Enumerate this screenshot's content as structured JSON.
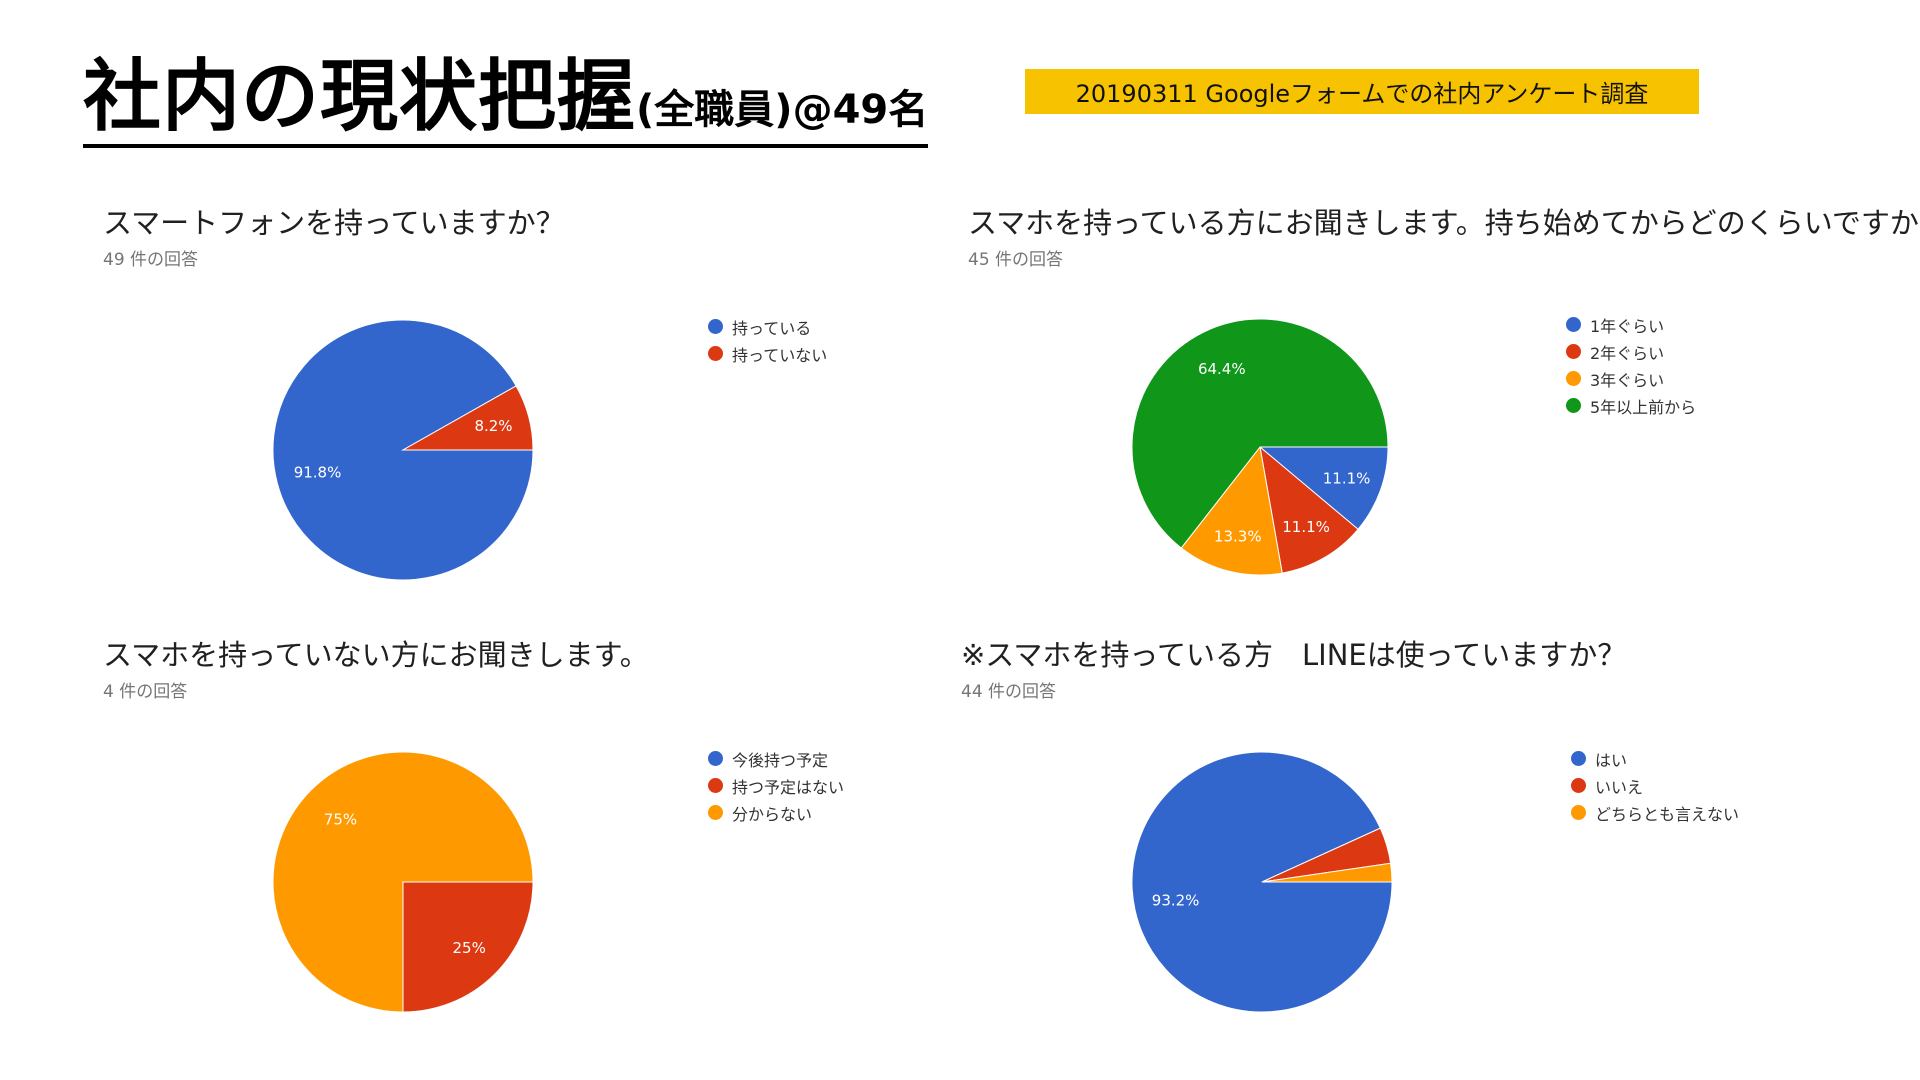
{
  "header": {
    "title_main": "社内の現状把握",
    "title_sub": "(全職員)@49名",
    "banner": "20190311  Googleフォームでの社内アンケート調査"
  },
  "colors": {
    "blue": "#3366cc",
    "red": "#dc3912",
    "orange": "#ff9900",
    "green": "#109618"
  },
  "chart_data": [
    {
      "type": "pie",
      "title": "スマートフォンを持っていますか？",
      "subtitle": "49 件の回答",
      "labels": [
        "持っている",
        "持っていない"
      ],
      "values": [
        91.8,
        8.2
      ],
      "data_labels": [
        "91.8%",
        "8.2%"
      ],
      "colors": [
        "#3366cc",
        "#dc3912"
      ],
      "legend": "right"
    },
    {
      "type": "pie",
      "title": "スマホを持っている方にお聞きします。持ち始めてからどのくらいですか？",
      "subtitle": "45 件の回答",
      "labels": [
        "1年ぐらい",
        "2年ぐらい",
        "3年ぐらい",
        "5年以上前から"
      ],
      "values": [
        11.1,
        11.1,
        13.3,
        64.4
      ],
      "data_labels": [
        "11.1%",
        "11.1%",
        "13.3%",
        "64.4%"
      ],
      "colors": [
        "#3366cc",
        "#dc3912",
        "#ff9900",
        "#109618"
      ],
      "legend": "right"
    },
    {
      "type": "pie",
      "title": "スマホを持っていない方にお聞きします。",
      "subtitle": "4 件の回答",
      "labels": [
        "今後持つ予定",
        "持つ予定はない",
        "分からない"
      ],
      "values": [
        0,
        25,
        75
      ],
      "data_labels": [
        "",
        "25%",
        "75%"
      ],
      "colors": [
        "#3366cc",
        "#dc3912",
        "#ff9900"
      ],
      "legend": "right"
    },
    {
      "type": "pie",
      "title": "※スマホを持っている方　LINEは使っていますか？",
      "subtitle": "44 件の回答",
      "labels": [
        "はい",
        "いいえ",
        "どちらとも言えない"
      ],
      "values": [
        93.2,
        4.5,
        2.3
      ],
      "data_labels": [
        "93.2%",
        "",
        ""
      ],
      "colors": [
        "#3366cc",
        "#dc3912",
        "#ff9900"
      ],
      "legend": "right"
    }
  ]
}
